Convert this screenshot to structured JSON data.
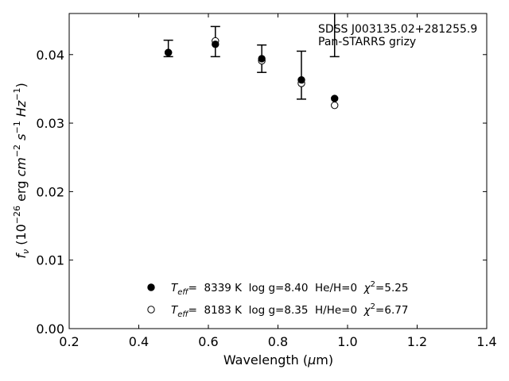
{
  "chart_data": {
    "type": "scatter",
    "xlabel": "Wavelength (μm)",
    "ylabel": "f_ν (10^-26 erg cm^-2 s^-1 Hz^-1)",
    "xlim": [
      0.2,
      1.4
    ],
    "ylim": [
      0.0,
      0.046
    ],
    "xticks": [
      0.2,
      0.4,
      0.6,
      0.8,
      1.0,
      1.2,
      1.4
    ],
    "xtick_labels": [
      "0.2",
      "0.4",
      "0.6",
      "0.8",
      "1.0",
      "1.2",
      "1.4"
    ],
    "yticks": [
      0.0,
      0.01,
      0.02,
      0.03,
      0.04
    ],
    "ytick_labels": [
      "0.00",
      "0.01",
      "0.02",
      "0.03",
      "0.04"
    ],
    "grid": false,
    "annotation": {
      "line1": "SDSS J003135.02+281255.9",
      "line2": "Pan-STARRS grizy"
    },
    "observed": {
      "x": [
        0.4849,
        0.6201,
        0.7535,
        0.8674,
        0.9628
      ],
      "y": [
        0.0409,
        0.0419,
        0.0394,
        0.037,
        0.0507
      ],
      "yerr": [
        0.0012,
        0.0022,
        0.002,
        0.0035,
        0.011
      ]
    },
    "series": [
      {
        "marker": "filled-circle",
        "x": [
          0.4849,
          0.6201,
          0.7535,
          0.8674,
          0.9628
        ],
        "y": [
          0.0403,
          0.0415,
          0.0394,
          0.0363,
          0.0336
        ]
      },
      {
        "marker": "open-circle",
        "x": [
          0.4849,
          0.6201,
          0.7535,
          0.8674,
          0.9628
        ],
        "y": [
          0.0403,
          0.042,
          0.0391,
          0.0358,
          0.0326
        ]
      }
    ],
    "legend": [
      {
        "marker": "filled-circle",
        "teff_label": "T",
        "teff_sub": "eff",
        "teff_value": "=  8339 K",
        "logg": "log g=8.40",
        "comp": "He/H=0",
        "chi_label": "χ",
        "chi_sup": "2",
        "chi_value": "=5.25"
      },
      {
        "marker": "open-circle",
        "teff_label": "T",
        "teff_sub": "eff",
        "teff_value": "=  8183 K",
        "logg": "log g=8.35",
        "comp": "H/He=0",
        "chi_label": "χ",
        "chi_sup": "2",
        "chi_value": "=6.77"
      }
    ],
    "legend_position": "lower-center"
  }
}
